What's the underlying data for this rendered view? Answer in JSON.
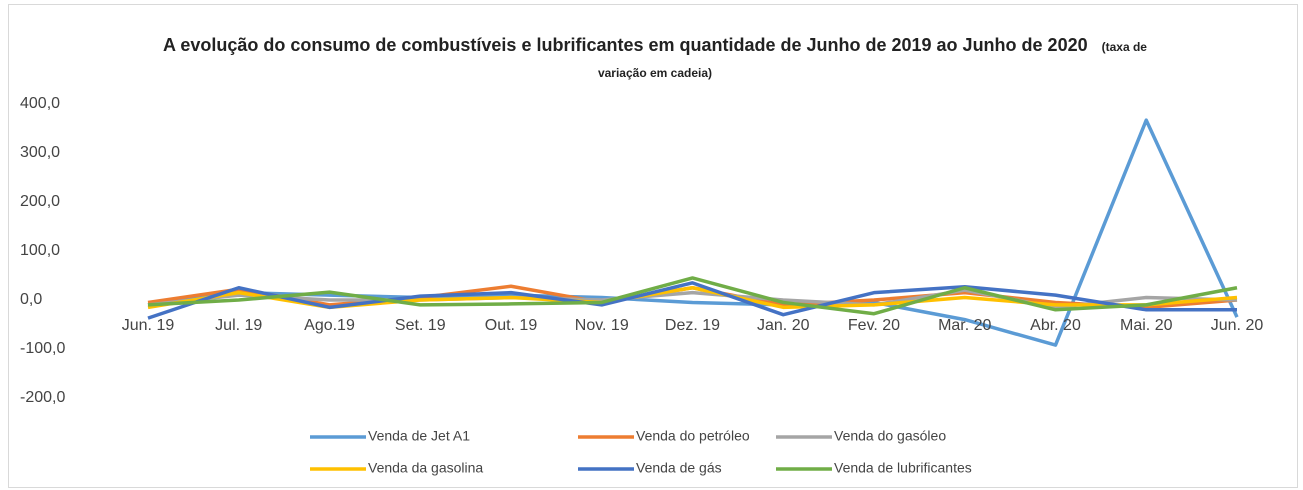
{
  "chart_data": {
    "type": "line",
    "title": "A evolução do consumo de combustíveis e lubrificantes em quantidade de Junho de 2019 ao Junho de 2020",
    "subtitle": "(taxa de variação em cadeia)",
    "categories": [
      "Jun. 19",
      "Jul. 19",
      "Ago.19",
      "Set. 19",
      "Out. 19",
      "Nov. 19",
      "Dez. 19",
      "Jan. 20",
      "Fev. 20",
      "Mar. 20",
      "Abr. 20",
      "Mai. 20",
      "Jun. 20"
    ],
    "series": [
      {
        "name": "Venda de Jet A1",
        "color": "#5b9bd5",
        "values": [
          -10,
          15,
          10,
          5,
          10,
          5,
          -5,
          -10,
          -5,
          -40,
          -92,
          367,
          -35
        ]
      },
      {
        "name": "Venda do petróleo",
        "color": "#ed7d31",
        "values": [
          -5,
          22,
          -10,
          5,
          28,
          -5,
          25,
          -10,
          0,
          15,
          -5,
          -15,
          0
        ]
      },
      {
        "name": "Venda do gasóleo",
        "color": "#a5a5a5",
        "values": [
          -10,
          10,
          0,
          0,
          5,
          0,
          15,
          0,
          -10,
          20,
          -15,
          5,
          0
        ]
      },
      {
        "name": "Venda da gasolina",
        "color": "#ffc000",
        "values": [
          -15,
          15,
          -15,
          0,
          5,
          -5,
          25,
          -15,
          -10,
          5,
          -10,
          -10,
          5
        ]
      },
      {
        "name": "Venda de gás",
        "color": "#4472c4",
        "values": [
          -37,
          25,
          -15,
          8,
          15,
          -10,
          35,
          -30,
          15,
          27,
          10,
          -20,
          -20
        ]
      },
      {
        "name": "Venda de lubrificantes",
        "color": "#70ad47",
        "values": [
          -10,
          0,
          16,
          -10,
          -8,
          -5,
          45,
          -5,
          -28,
          25,
          -20,
          -10,
          25
        ]
      }
    ],
    "ylim": [
      -200,
      400
    ],
    "yticks": [
      {
        "value": -200,
        "label": "-200,0"
      },
      {
        "value": -100,
        "label": "-100,0"
      },
      {
        "value": 0,
        "label": "0,0"
      },
      {
        "value": 100,
        "label": "100,0"
      },
      {
        "value": 200,
        "label": "200,0"
      },
      {
        "value": 300,
        "label": "300,0"
      },
      {
        "value": 400,
        "label": "400,0"
      }
    ],
    "grid": false,
    "legend": "bottom"
  }
}
